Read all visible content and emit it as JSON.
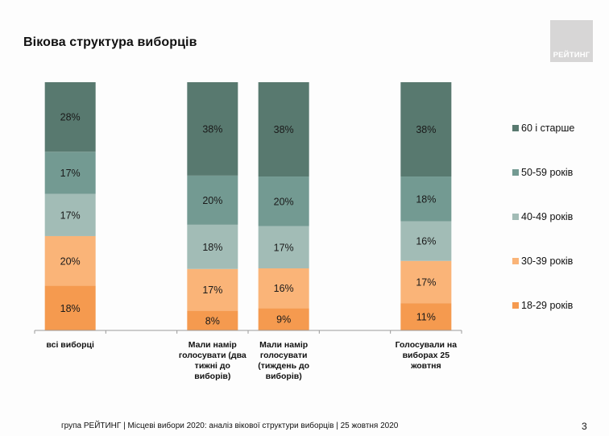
{
  "header": {
    "title": "Вікова структура виборців",
    "logo_text": "РЕЙТИНГ"
  },
  "footer": {
    "text": "група РЕЙТИНГ | Місцеві вибори 2020: аналіз вікової структури виборців | 25 жовтня 2020",
    "page_number": "3"
  },
  "chart_data": {
    "type": "bar",
    "stacked": true,
    "title": "Вікова структура виборців",
    "xlabel": "",
    "ylabel": "",
    "ylim": [
      0,
      100
    ],
    "grid": false,
    "legend_position": "right",
    "categories": [
      "всі виборці",
      "",
      "Мали намір голосувати (два тижні до виборів)",
      "Мали намір голосувати (тиждень до виборів)",
      "",
      "Голосували на виборах 25 жовтня"
    ],
    "category_lines": [
      [
        "всі виборці"
      ],
      [],
      [
        "Мали намір",
        "голосувати (два",
        "тижні до",
        "виборів)"
      ],
      [
        "Мали намір",
        "голосувати",
        "(тиждень до",
        "виборів)"
      ],
      [],
      [
        "Голосували на",
        "виборах 25",
        "жовтня"
      ]
    ],
    "series": [
      {
        "name": "18-29 років",
        "color": "#f59a4f",
        "values": [
          18,
          null,
          8,
          9,
          null,
          11
        ]
      },
      {
        "name": "30-39 років",
        "color": "#fab478",
        "values": [
          20,
          null,
          17,
          16,
          null,
          17
        ]
      },
      {
        "name": "40-49 років",
        "color": "#a2bcb6",
        "values": [
          17,
          null,
          18,
          17,
          null,
          16
        ]
      },
      {
        "name": "50-59 років",
        "color": "#739a92",
        "values": [
          17,
          null,
          20,
          20,
          null,
          18
        ]
      },
      {
        "name": "60 і старше",
        "color": "#58796f",
        "values": [
          28,
          null,
          38,
          38,
          null,
          38
        ]
      }
    ],
    "data_labels": true,
    "label_suffix": "%"
  }
}
